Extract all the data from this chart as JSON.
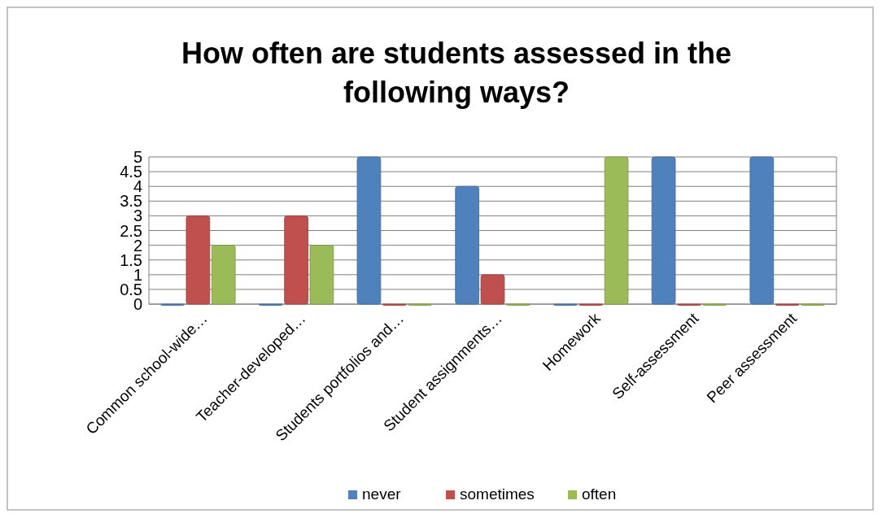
{
  "chart_data": {
    "type": "bar",
    "title": "How often are students assessed in the following ways?",
    "categories": [
      "Common school-wide…",
      "Teacher-developed…",
      "Students portfolios and…",
      "Student assignments…",
      "Homework",
      "Self-assessment",
      "Peer assessment"
    ],
    "series": [
      {
        "name": "never",
        "color": "#4f81bd",
        "values": [
          0,
          0,
          5,
          4,
          0,
          5,
          5
        ]
      },
      {
        "name": "sometimes",
        "color": "#c0504d",
        "values": [
          3,
          3,
          0,
          1,
          0,
          0,
          0
        ]
      },
      {
        "name": "often",
        "color": "#9bbb59",
        "values": [
          2,
          2,
          0,
          0,
          5,
          0,
          0
        ]
      }
    ],
    "ylim": [
      0,
      5
    ],
    "yticks": [
      0,
      0.5,
      1,
      1.5,
      2,
      2.5,
      3,
      3.5,
      4,
      4.5,
      5
    ],
    "grid": "y",
    "legend": "bottom"
  }
}
